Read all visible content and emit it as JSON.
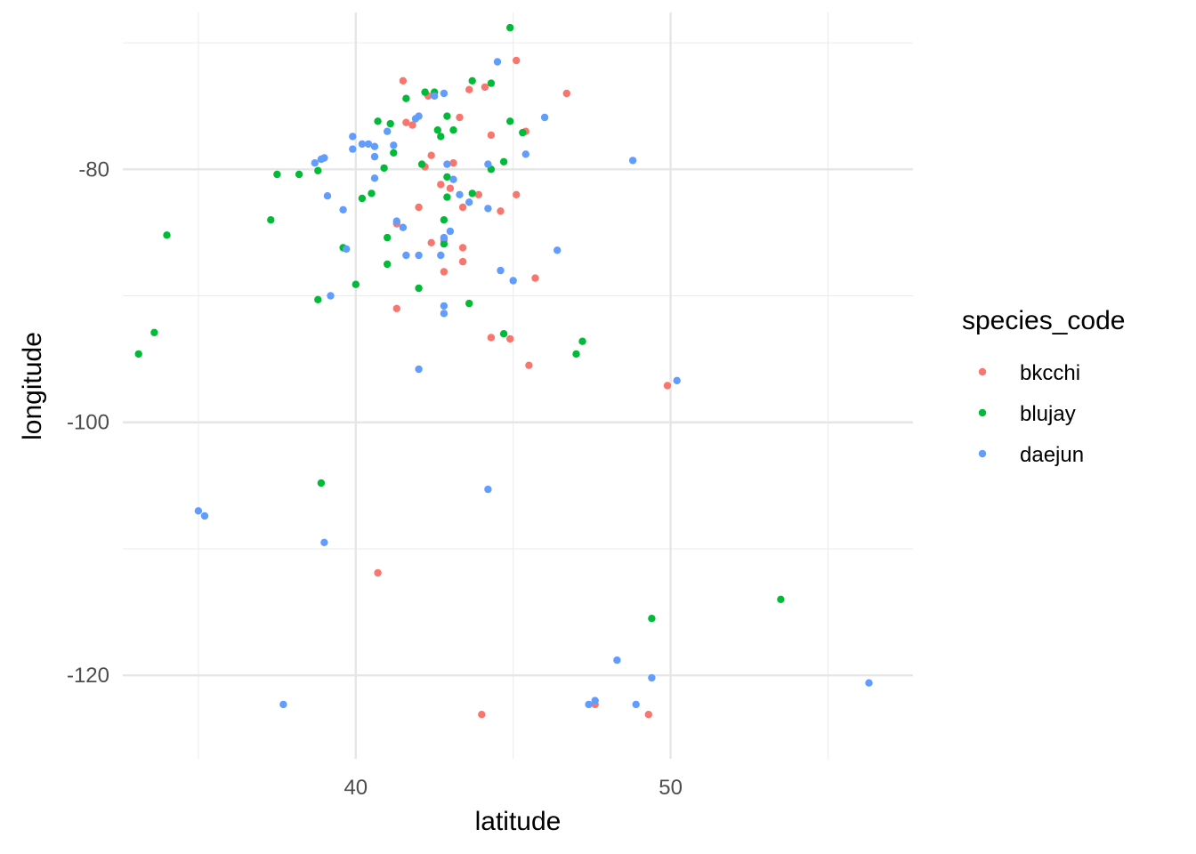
{
  "chart_data": {
    "type": "scatter",
    "title": "",
    "xlabel": "latitude",
    "ylabel": "longitude",
    "xlim": [
      32.6,
      57.7
    ],
    "ylim": [
      -126.6,
      -67.6
    ],
    "x_major_ticks": [
      40,
      50
    ],
    "x_minor_ticks": [
      35,
      45,
      55
    ],
    "y_major_ticks": [
      -80,
      -100,
      -120
    ],
    "y_minor_ticks": [
      -70,
      -90,
      -110
    ],
    "grid": true,
    "legend_position": "right",
    "legend_title": "species_code",
    "series": [
      {
        "name": "bkcchi",
        "color": "#F8766D",
        "points": [
          [
            45.1,
            -71.4
          ],
          [
            46.7,
            -74.0
          ],
          [
            44.1,
            -73.5
          ],
          [
            41.5,
            -73.0
          ],
          [
            43.3,
            -75.9
          ],
          [
            41.8,
            -76.5
          ],
          [
            44.3,
            -77.3
          ],
          [
            45.4,
            -77.0
          ],
          [
            41.6,
            -76.3
          ],
          [
            43.6,
            -73.7
          ],
          [
            42.3,
            -74.2
          ],
          [
            43.1,
            -79.5
          ],
          [
            42.4,
            -78.9
          ],
          [
            42.2,
            -79.8
          ],
          [
            42.7,
            -81.2
          ],
          [
            43.0,
            -81.5
          ],
          [
            43.9,
            -82.0
          ],
          [
            45.1,
            -82.0
          ],
          [
            43.4,
            -83.0
          ],
          [
            44.6,
            -83.3
          ],
          [
            42.0,
            -83.0
          ],
          [
            41.3,
            -84.3
          ],
          [
            42.4,
            -85.8
          ],
          [
            43.4,
            -86.2
          ],
          [
            43.4,
            -87.3
          ],
          [
            42.8,
            -88.1
          ],
          [
            45.7,
            -88.6
          ],
          [
            41.3,
            -91.0
          ],
          [
            44.3,
            -93.3
          ],
          [
            44.9,
            -93.4
          ],
          [
            45.5,
            -95.5
          ],
          [
            49.9,
            -97.1
          ],
          [
            42.8,
            -85.6
          ],
          [
            40.7,
            -111.9
          ],
          [
            44.0,
            -123.1
          ],
          [
            47.6,
            -122.3
          ],
          [
            49.3,
            -123.1
          ]
        ]
      },
      {
        "name": "blujay",
        "color": "#00BA38",
        "points": [
          [
            44.9,
            -68.8
          ],
          [
            43.7,
            -73.0
          ],
          [
            44.3,
            -73.2
          ],
          [
            41.6,
            -74.4
          ],
          [
            42.2,
            -73.9
          ],
          [
            42.5,
            -73.9
          ],
          [
            42.9,
            -75.8
          ],
          [
            40.7,
            -76.2
          ],
          [
            41.1,
            -76.4
          ],
          [
            44.9,
            -76.2
          ],
          [
            42.6,
            -76.9
          ],
          [
            43.1,
            -76.9
          ],
          [
            45.3,
            -77.1
          ],
          [
            42.7,
            -77.4
          ],
          [
            41.2,
            -78.7
          ],
          [
            42.1,
            -79.6
          ],
          [
            40.9,
            -79.9
          ],
          [
            42.9,
            -80.6
          ],
          [
            38.8,
            -80.1
          ],
          [
            38.2,
            -80.4
          ],
          [
            37.5,
            -80.4
          ],
          [
            44.3,
            -80.0
          ],
          [
            44.7,
            -79.4
          ],
          [
            43.7,
            -81.9
          ],
          [
            40.5,
            -81.9
          ],
          [
            40.2,
            -82.3
          ],
          [
            37.3,
            -84.0
          ],
          [
            42.8,
            -84.0
          ],
          [
            41.0,
            -85.4
          ],
          [
            42.8,
            -85.9
          ],
          [
            34.0,
            -85.2
          ],
          [
            39.6,
            -86.2
          ],
          [
            41.0,
            -87.5
          ],
          [
            40.0,
            -89.1
          ],
          [
            42.0,
            -89.4
          ],
          [
            38.8,
            -90.3
          ],
          [
            43.6,
            -90.6
          ],
          [
            33.6,
            -92.9
          ],
          [
            33.1,
            -94.6
          ],
          [
            44.7,
            -93.0
          ],
          [
            47.2,
            -93.6
          ],
          [
            47.0,
            -94.6
          ],
          [
            38.9,
            -104.8
          ],
          [
            49.4,
            -115.5
          ],
          [
            53.5,
            -114.0
          ],
          [
            42.9,
            -82.2
          ]
        ]
      },
      {
        "name": "daejun",
        "color": "#619CFF",
        "points": [
          [
            44.5,
            -71.5
          ],
          [
            42.8,
            -74.0
          ],
          [
            42.0,
            -75.8
          ],
          [
            41.9,
            -76.0
          ],
          [
            46.0,
            -75.9
          ],
          [
            41.0,
            -77.0
          ],
          [
            39.9,
            -77.4
          ],
          [
            40.2,
            -78.0
          ],
          [
            40.6,
            -78.2
          ],
          [
            40.4,
            -78.0
          ],
          [
            39.9,
            -78.4
          ],
          [
            41.2,
            -78.1
          ],
          [
            39.0,
            -79.1
          ],
          [
            38.9,
            -79.2
          ],
          [
            38.7,
            -79.5
          ],
          [
            40.6,
            -79.0
          ],
          [
            45.4,
            -78.8
          ],
          [
            44.2,
            -79.6
          ],
          [
            42.9,
            -79.6
          ],
          [
            40.6,
            -80.7
          ],
          [
            43.1,
            -80.8
          ],
          [
            43.6,
            -82.6
          ],
          [
            39.1,
            -82.1
          ],
          [
            39.6,
            -83.2
          ],
          [
            44.2,
            -83.1
          ],
          [
            41.3,
            -84.1
          ],
          [
            41.5,
            -84.6
          ],
          [
            43.0,
            -84.9
          ],
          [
            42.8,
            -85.4
          ],
          [
            42.7,
            -86.8
          ],
          [
            42.0,
            -86.8
          ],
          [
            41.6,
            -86.8
          ],
          [
            46.4,
            -86.4
          ],
          [
            39.7,
            -86.3
          ],
          [
            48.8,
            -79.3
          ],
          [
            44.6,
            -88.0
          ],
          [
            45.0,
            -88.8
          ],
          [
            39.2,
            -90.0
          ],
          [
            42.8,
            -90.8
          ],
          [
            42.8,
            -91.4
          ],
          [
            42.0,
            -95.8
          ],
          [
            50.2,
            -96.7
          ],
          [
            44.2,
            -105.3
          ],
          [
            35.0,
            -107.0
          ],
          [
            35.2,
            -107.4
          ],
          [
            39.0,
            -109.5
          ],
          [
            48.3,
            -118.8
          ],
          [
            49.4,
            -120.2
          ],
          [
            37.7,
            -122.3
          ],
          [
            47.4,
            -122.3
          ],
          [
            47.6,
            -122.0
          ],
          [
            48.9,
            -122.3
          ],
          [
            56.3,
            -120.6
          ],
          [
            43.3,
            -82.0
          ],
          [
            42.5,
            -74.2
          ]
        ]
      }
    ]
  }
}
